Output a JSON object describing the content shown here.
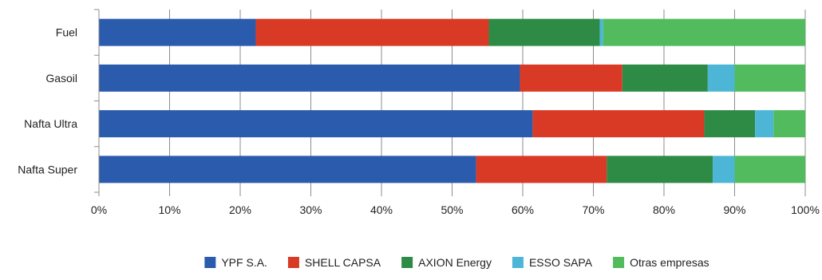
{
  "chart_data": {
    "type": "bar",
    "orientation": "horizontal",
    "stacked": "percent",
    "categories": [
      "Fuel",
      "Gasoil",
      "Nafta Ultra",
      "Nafta Super"
    ],
    "series": [
      {
        "name": "YPF S.A.",
        "color": "#2B5BAD",
        "values": [
          22.2,
          59.6,
          61.4,
          53.4
        ]
      },
      {
        "name": "SHELL CAPSA",
        "color": "#D93A26",
        "values": [
          33.0,
          14.5,
          24.3,
          18.5
        ]
      },
      {
        "name": "AXION Energy",
        "color": "#2E8B45",
        "values": [
          15.7,
          12.1,
          7.2,
          15.0
        ]
      },
      {
        "name": "ESSO SAPA",
        "color": "#4DB6D6",
        "values": [
          0.5,
          3.8,
          2.6,
          3.1
        ]
      },
      {
        "name": "Otras empresas",
        "color": "#52BB5E",
        "values": [
          28.6,
          10.0,
          4.5,
          10.0
        ]
      }
    ],
    "xlim": [
      0,
      100
    ],
    "x_ticks": [
      "0%",
      "10%",
      "20%",
      "30%",
      "40%",
      "50%",
      "60%",
      "70%",
      "80%",
      "90%",
      "100%"
    ],
    "grid": true,
    "legend_position": "bottom"
  }
}
